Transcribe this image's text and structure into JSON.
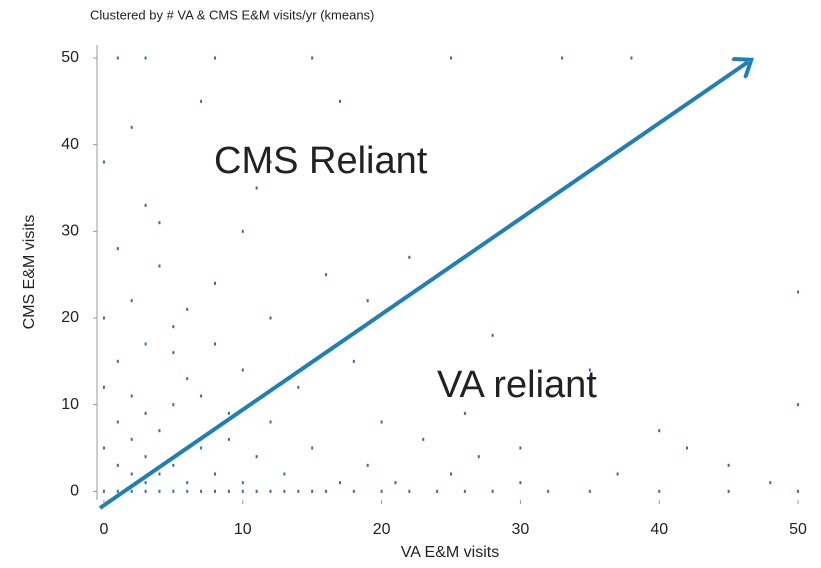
{
  "chart_data": {
    "type": "scatter",
    "title": "Clustered by # VA & CMS E&M visits/yr (kmeans)",
    "x_label": "VA E&M visits",
    "y_label": "CMS E&M visits",
    "annotations": [
      "CMS Reliant",
      "VA reliant"
    ],
    "color": "#2e6db4",
    "grid": false,
    "xlim": [
      -0.5,
      50.5
    ],
    "xticks": [
      0,
      10,
      20,
      30,
      40,
      50
    ],
    "ylim": [
      -1,
      51.5
    ],
    "yticks": [
      0,
      10,
      20,
      30,
      40,
      50
    ],
    "series": [
      {
        "name": "visits",
        "x": [
          0,
          0,
          0,
          0,
          1,
          1,
          1,
          1,
          1,
          2,
          2,
          2,
          2,
          2,
          3,
          3,
          3,
          3,
          3,
          4,
          4,
          4,
          4,
          5,
          5,
          5,
          5,
          6,
          6,
          6,
          7,
          7,
          7,
          8,
          8,
          8,
          9,
          9,
          10,
          10,
          10,
          11,
          11,
          12,
          12,
          13,
          13,
          14,
          15,
          15,
          16,
          17,
          18,
          19,
          20,
          21,
          22,
          23,
          24,
          25,
          26,
          27,
          28,
          30,
          32,
          33,
          35,
          37,
          40,
          42,
          45,
          48,
          50,
          50,
          50,
          0,
          1,
          2,
          3,
          4,
          5,
          6,
          7,
          8,
          9,
          10,
          12,
          14,
          16,
          18,
          20,
          3,
          8,
          15,
          25,
          33,
          38,
          17,
          12,
          22,
          28,
          35,
          40,
          45,
          30,
          26,
          19,
          11
        ],
        "values": [
          0,
          5,
          12,
          20,
          0,
          3,
          8,
          15,
          28,
          0,
          2,
          6,
          11,
          22,
          0,
          1,
          4,
          9,
          17,
          0,
          2,
          7,
          31,
          0,
          3,
          10,
          19,
          0,
          1,
          13,
          0,
          5,
          45,
          0,
          2,
          24,
          0,
          6,
          0,
          1,
          14,
          0,
          4,
          0,
          8,
          0,
          2,
          0,
          0,
          5,
          0,
          1,
          0,
          3,
          0,
          1,
          0,
          6,
          0,
          2,
          0,
          4,
          0,
          1,
          0,
          11,
          0,
          2,
          0,
          5,
          0,
          1,
          0,
          10,
          23,
          38,
          50,
          42,
          33,
          26,
          16,
          21,
          11,
          17,
          9,
          30,
          20,
          12,
          25,
          15,
          8,
          50,
          50,
          50,
          50,
          50,
          50,
          45,
          38,
          27,
          18,
          14,
          7,
          3,
          5,
          9,
          22,
          35
        ]
      }
    ]
  }
}
